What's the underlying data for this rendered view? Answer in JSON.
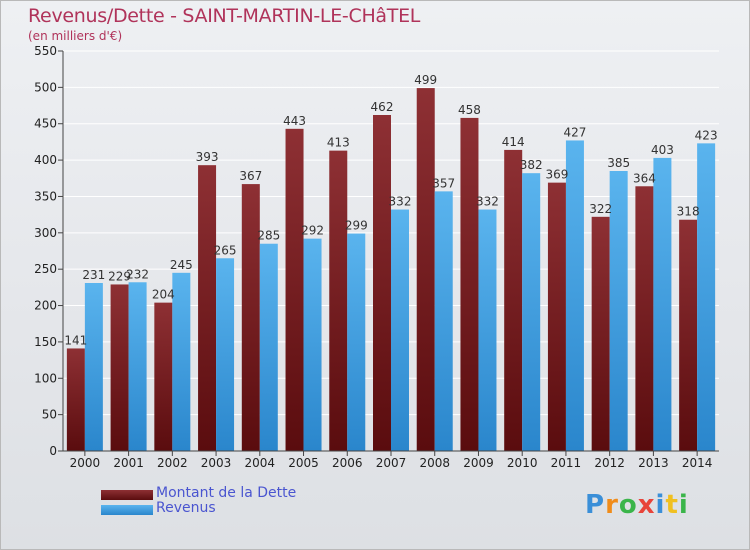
{
  "header": {
    "title": "Revenus/Dette - SAINT-MARTIN-LE-CHâTEL",
    "subtitle": "(en milliers d'€)"
  },
  "chart_data": {
    "type": "bar",
    "title": "Revenus/Dette - SAINT-MARTIN-LE-CHâTEL",
    "subtitle": "(en milliers d'€)",
    "xlabel": "",
    "ylabel": "",
    "ylim": [
      0,
      550
    ],
    "yticks": [
      0,
      50,
      100,
      150,
      200,
      250,
      300,
      350,
      400,
      450,
      500,
      550
    ],
    "grid": true,
    "legend_position": "bottom-left",
    "categories": [
      "2000",
      "2001",
      "2002",
      "2003",
      "2004",
      "2005",
      "2006",
      "2007",
      "2008",
      "2009",
      "2010",
      "2011",
      "2012",
      "2013",
      "2014"
    ],
    "series": [
      {
        "name": "Montant de la Dette",
        "color": "#7d2a2e",
        "values": [
          141,
          229,
          204,
          393,
          367,
          443,
          413,
          462,
          499,
          458,
          414,
          369,
          322,
          364,
          318
        ]
      },
      {
        "name": "Revenus",
        "color": "#4aa3e0",
        "values": [
          231,
          232,
          245,
          265,
          285,
          292,
          299,
          332,
          357,
          332,
          382,
          427,
          385,
          403,
          423
        ]
      }
    ]
  },
  "logo": {
    "letters": [
      "P",
      "r",
      "o",
      "x",
      "i",
      "t",
      "i"
    ],
    "colors": [
      "#3a8fd8",
      "#f08c1a",
      "#3ab54a",
      "#e8443a",
      "#3a8fd8",
      "#f0c020",
      "#3ab54a"
    ]
  }
}
